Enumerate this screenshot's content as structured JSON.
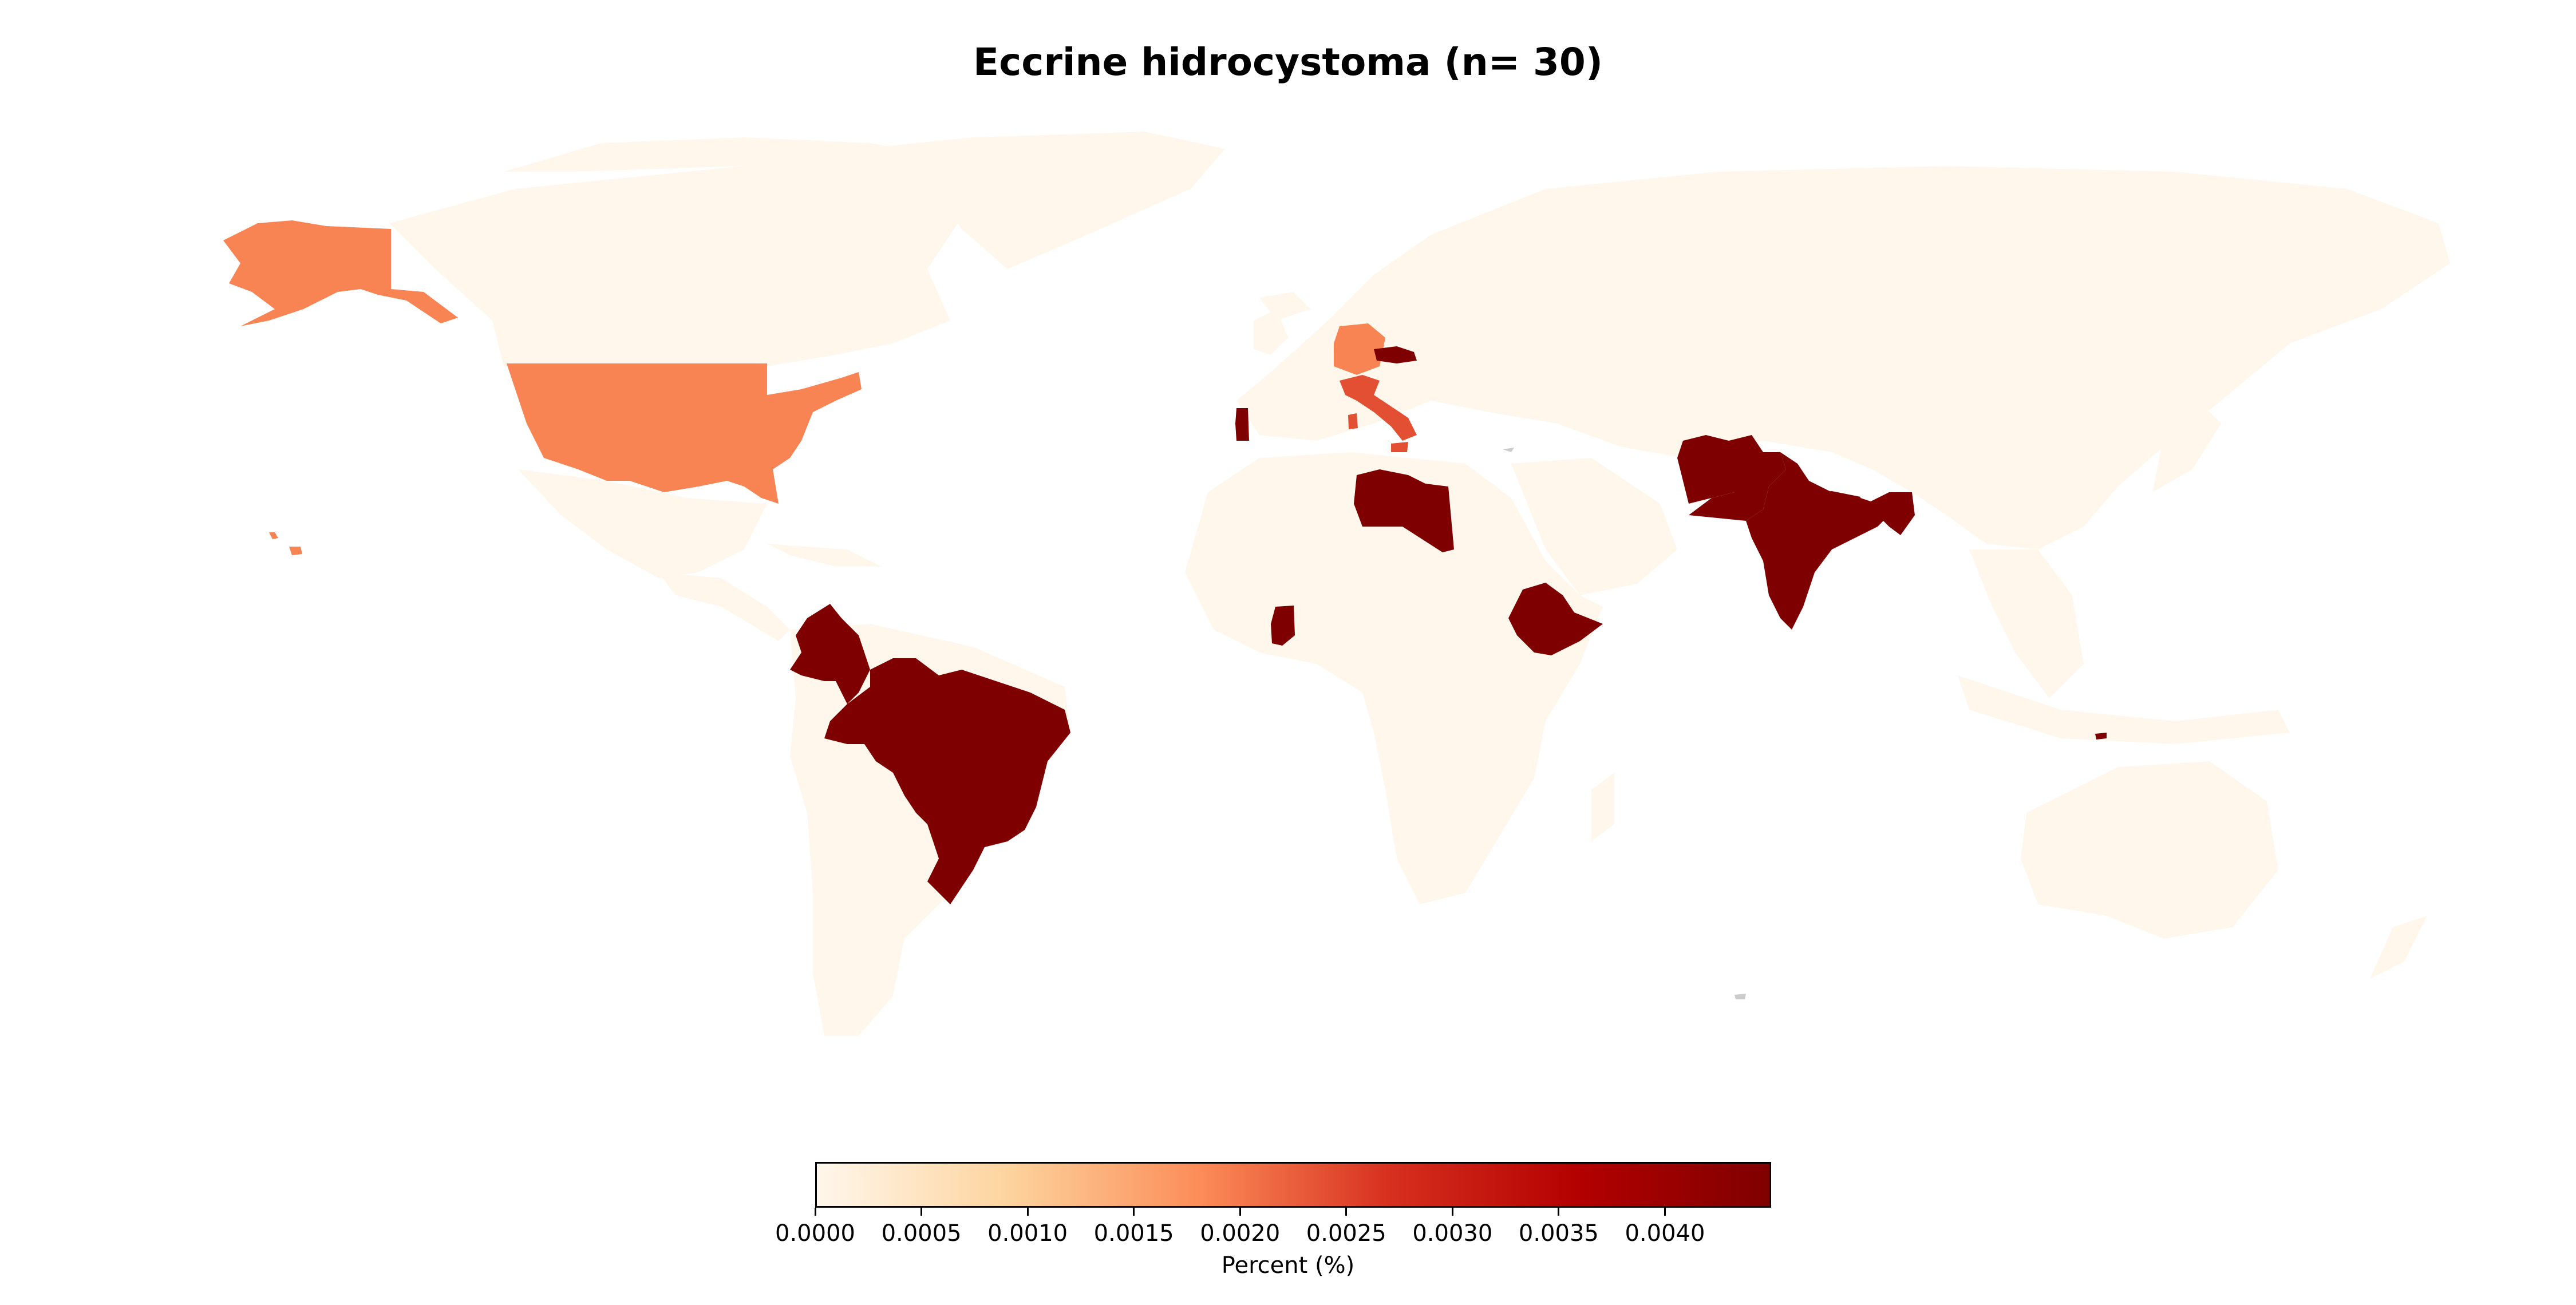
{
  "title": "Eccrine hidrocystoma (n= 30)",
  "colorbar": {
    "label": "Percent (%)",
    "min": 0,
    "max": 0.0045,
    "colormap": "OrRd",
    "colors": [
      "#fff7ec",
      "#fdd49e",
      "#fc8d59",
      "#d7301f",
      "#b30000",
      "#7f0000"
    ],
    "ticks": [
      "0.0000",
      "0.0005",
      "0.0010",
      "0.0015",
      "0.0020",
      "0.0025",
      "0.0030",
      "0.0035",
      "0.0040"
    ]
  },
  "chart_data": {
    "type": "choropleth",
    "title": "Eccrine hidrocystoma (n= 30)",
    "value_label": "Percent (%)",
    "value_range": [
      0,
      0.0045
    ],
    "base_color": "#fff7ec",
    "regions": [
      {
        "region": "United States",
        "value": 0.0019
      },
      {
        "region": "Austria",
        "value": 0.0019
      },
      {
        "region": "Italy",
        "value": 0.0024
      },
      {
        "region": "Slovakia",
        "value": 0.0045
      },
      {
        "region": "Portugal",
        "value": 0.0045
      },
      {
        "region": "Libya",
        "value": 0.0045
      },
      {
        "region": "Ghana",
        "value": 0.0045
      },
      {
        "region": "Ethiopia",
        "value": 0.0045
      },
      {
        "region": "Colombia",
        "value": 0.0045
      },
      {
        "region": "Brazil",
        "value": 0.0045
      },
      {
        "region": "Afghanistan",
        "value": 0.0045
      },
      {
        "region": "Pakistan",
        "value": 0.0045
      },
      {
        "region": "India",
        "value": 0.0045
      },
      {
        "region": "Nepal",
        "value": 0.0045
      },
      {
        "region": "Bangladesh",
        "value": 0.0045
      },
      {
        "region": "Timor-Leste",
        "value": 0.0045
      }
    ]
  }
}
